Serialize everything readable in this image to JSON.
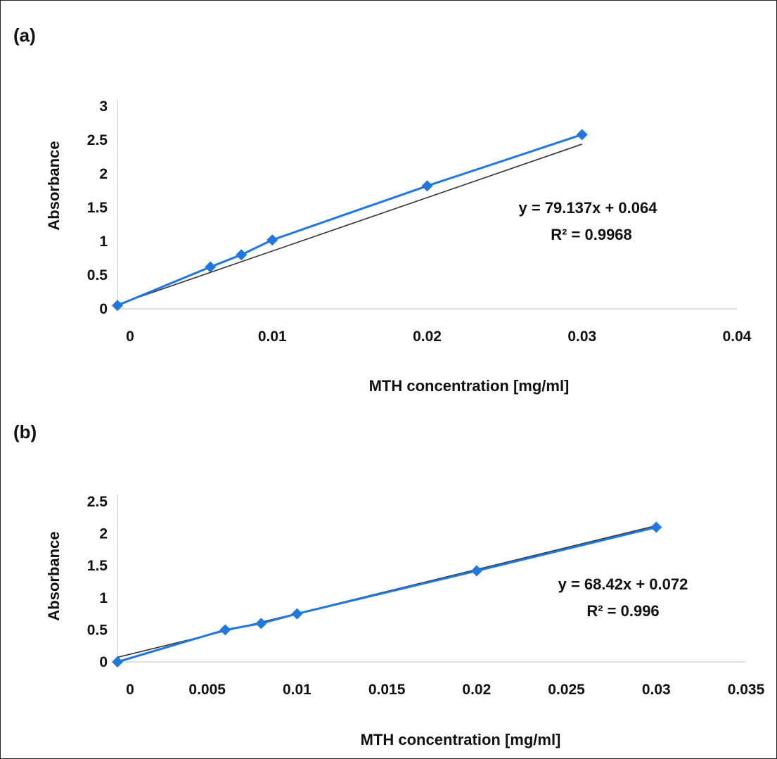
{
  "chart_data": [
    {
      "panel_label": "(a)",
      "type": "scatter",
      "xlabel": "MTH concentration [mg/ml]",
      "ylabel": "Absorbance",
      "xlim": [
        0,
        0.04
      ],
      "ylim": [
        0,
        3
      ],
      "x_ticks": [
        0,
        0.01,
        0.02,
        0.03,
        0.04
      ],
      "x_tick_labels": [
        "0",
        "0.01",
        "0.02",
        "0.03",
        "0.04"
      ],
      "y_ticks": [
        0,
        0.5,
        1,
        1.5,
        2,
        2.5,
        3
      ],
      "y_tick_labels": [
        "0",
        "0.5",
        "1",
        "1.5",
        "2",
        "2.5",
        "3"
      ],
      "grid": false,
      "series": [
        {
          "x": [
            0,
            0.006,
            0.008,
            0.01,
            0.02,
            0.03
          ],
          "y": [
            0.05,
            0.62,
            0.8,
            1.02,
            1.82,
            2.58
          ],
          "color": "#1f77e0",
          "marker": "diamond"
        }
      ],
      "trendline": {
        "slope": 79.137,
        "intercept": 0.064,
        "color": "#333333"
      },
      "equation": "y = 79.137x + 0.064",
      "r_squared": "R² = 0.9968"
    },
    {
      "panel_label": "(b)",
      "type": "scatter",
      "xlabel": "MTH concentration [mg/ml]",
      "ylabel": "Absorbance",
      "xlim": [
        0,
        0.035
      ],
      "ylim": [
        0,
        2.5
      ],
      "x_ticks": [
        0,
        0.005,
        0.01,
        0.015,
        0.02,
        0.025,
        0.03,
        0.035
      ],
      "x_tick_labels": [
        "0",
        "0.005",
        "0.01",
        "0.015",
        "0.02",
        "0.025",
        "0.03",
        "0.035"
      ],
      "y_ticks": [
        0,
        0.5,
        1,
        1.5,
        2,
        2.5
      ],
      "y_tick_labels": [
        "0",
        "0.5",
        "1",
        "1.5",
        "2",
        "2.5"
      ],
      "grid": false,
      "series": [
        {
          "x": [
            0,
            0.006,
            0.008,
            0.01,
            0.02,
            0.03
          ],
          "y": [
            0,
            0.5,
            0.6,
            0.75,
            1.42,
            2.1
          ],
          "color": "#1f77e0",
          "marker": "diamond"
        }
      ],
      "trendline": {
        "slope": 68.42,
        "intercept": 0.072,
        "color": "#333333"
      },
      "equation": "y = 68.42x + 0.072",
      "r_squared": "R² = 0.996"
    }
  ]
}
